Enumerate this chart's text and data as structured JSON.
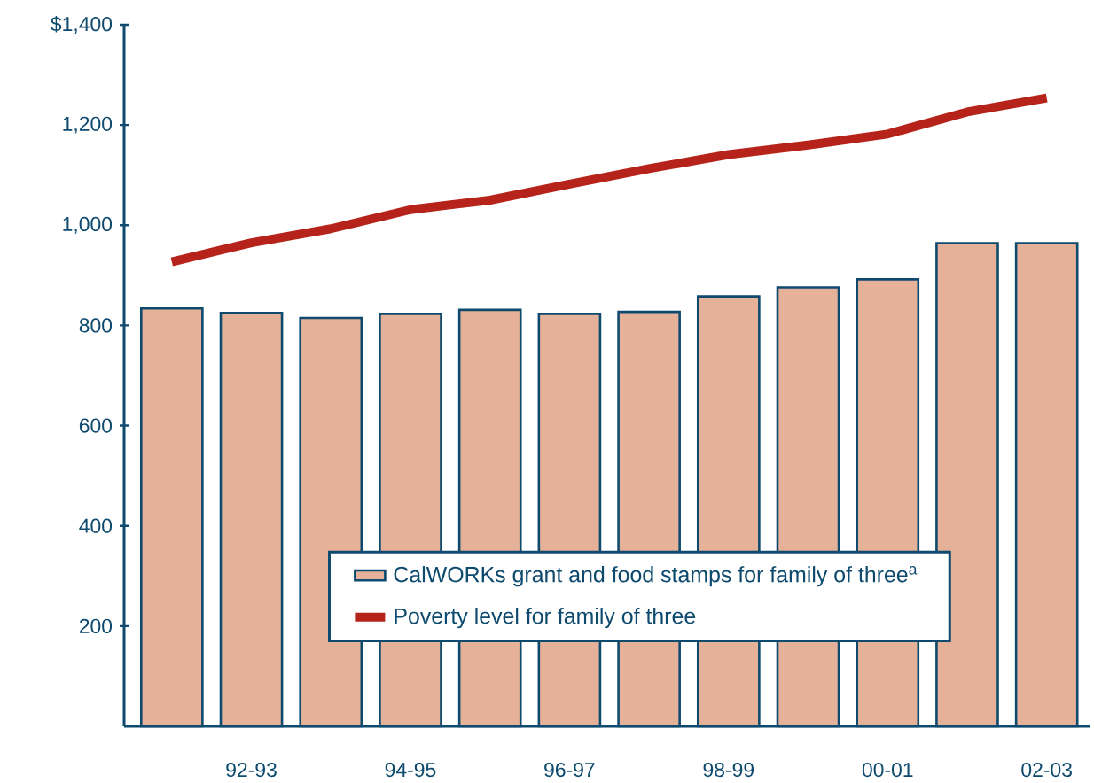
{
  "chart_data": {
    "type": "bar",
    "categories": [
      null,
      "92-93",
      null,
      "94-95",
      null,
      "96-97",
      null,
      "98-99",
      null,
      "00-01",
      null,
      "02-03"
    ],
    "series": [
      {
        "name": "CalWORKs grant and food stamps for family of three$^{a}$",
        "color": "#e5b199",
        "values": [
          834,
          825,
          815,
          823,
          831,
          823,
          827,
          858,
          876,
          892,
          964,
          964
        ]
      },
      {
        "name": "Poverty level for family of three",
        "type": "line",
        "color": "#b5231a",
        "values": [
          927,
          965,
          993,
          1031,
          1050,
          1082,
          1113,
          1141,
          1160,
          1182,
          1226,
          1254
        ]
      }
    ],
    "ylim": [
      0,
      1400
    ],
    "yticks": [
      {
        "value": 200,
        "label": "200"
      },
      {
        "value": 400,
        "label": "400"
      },
      {
        "value": 600,
        "label": "600"
      },
      {
        "value": 800,
        "label": "800"
      },
      {
        "value": 1000,
        "label": "1,000"
      },
      {
        "value": 1200,
        "label": "1,200"
      },
      {
        "value": 1400,
        "label": "$1,400"
      }
    ],
    "grid": false,
    "legend": "bottom",
    "marker": "none",
    "line_style": "solid"
  }
}
